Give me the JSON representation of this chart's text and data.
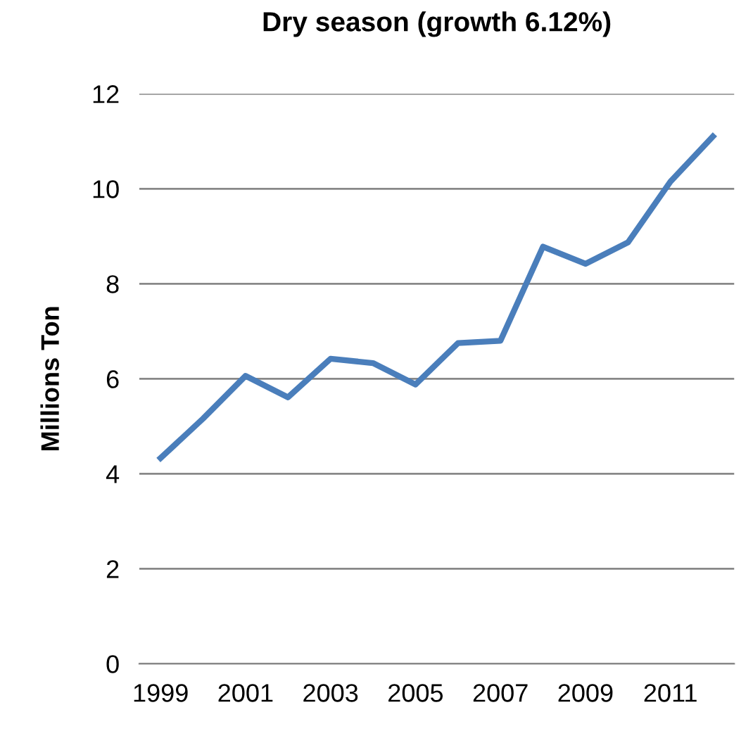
{
  "chart_data": {
    "type": "line",
    "title": "Dry season (growth 6.12%)",
    "ylabel": "Millions Ton",
    "categories": [
      "1999",
      null,
      "2001",
      null,
      "2003",
      null,
      "2005",
      null,
      "2007",
      null,
      "2009",
      null,
      "2011",
      null
    ],
    "series": [
      {
        "color": "#4a7ebb",
        "values": [
          4.33,
          5.16,
          6.06,
          5.61,
          6.42,
          6.33,
          5.88,
          6.75,
          6.8,
          8.78,
          8.42,
          8.87,
          10.15,
          11.1
        ]
      }
    ],
    "ylim": [
      0,
      12
    ],
    "yticks": [
      0,
      2,
      4,
      6,
      8,
      10,
      12
    ],
    "grid": "y",
    "marker": "none",
    "line_style": "solid",
    "legend": false
  }
}
